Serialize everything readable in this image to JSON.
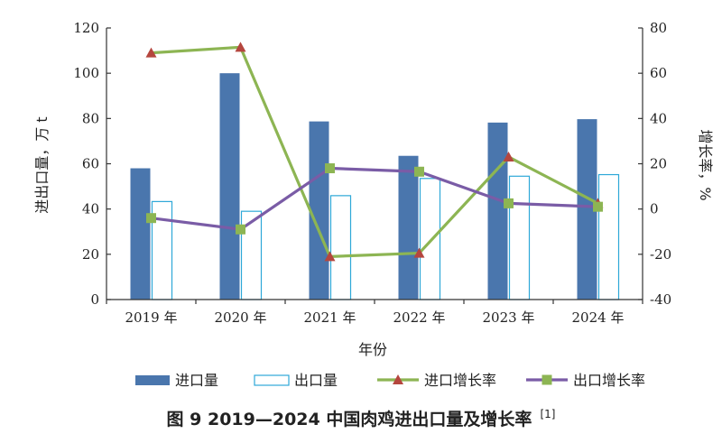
{
  "chart_data": {
    "type": "bar",
    "categories": [
      "2019 年",
      "2020 年",
      "2021 年",
      "2022 年",
      "2023 年",
      "2024 年"
    ],
    "series": [
      {
        "name": "进口量",
        "kind": "bar",
        "axis": "left",
        "color": "#4a76ad",
        "values": [
          58,
          100,
          78.7,
          63.5,
          78.2,
          79.7
        ]
      },
      {
        "name": "出口量",
        "kind": "bar",
        "axis": "left",
        "color": "#2ea8d8",
        "fill": "#ffffff",
        "values": [
          43.3,
          39,
          45.9,
          53.5,
          54.5,
          55.2
        ]
      },
      {
        "name": "进口增长率",
        "kind": "line",
        "axis": "right",
        "color": "#8db553",
        "marker": "triangle",
        "marker_color": "#b5463e",
        "values": [
          69,
          71.5,
          -21,
          -19.5,
          23,
          2.5
        ]
      },
      {
        "name": "出口增长率",
        "kind": "line",
        "axis": "right",
        "color": "#7a5ca6",
        "marker": "square",
        "marker_color": "#8db553",
        "values": [
          -4,
          -9,
          18,
          16.5,
          2.5,
          1
        ]
      }
    ],
    "xlabel": "年份",
    "ylabel": "进出口量，万 t",
    "y2label": "增长率，%",
    "ylim": [
      0,
      120
    ],
    "y2lim": [
      -40,
      80
    ],
    "yticks": [
      "0",
      "20",
      "40",
      "60",
      "80",
      "100",
      "120"
    ],
    "y2ticks": [
      "-40",
      "-20",
      "0",
      "20",
      "40",
      "60",
      "80"
    ],
    "grid": false,
    "legend_position": "bottom",
    "caption": "图 9  2019—2024 中国肉鸡进出口量及增长率",
    "caption_ref": "[1]"
  }
}
